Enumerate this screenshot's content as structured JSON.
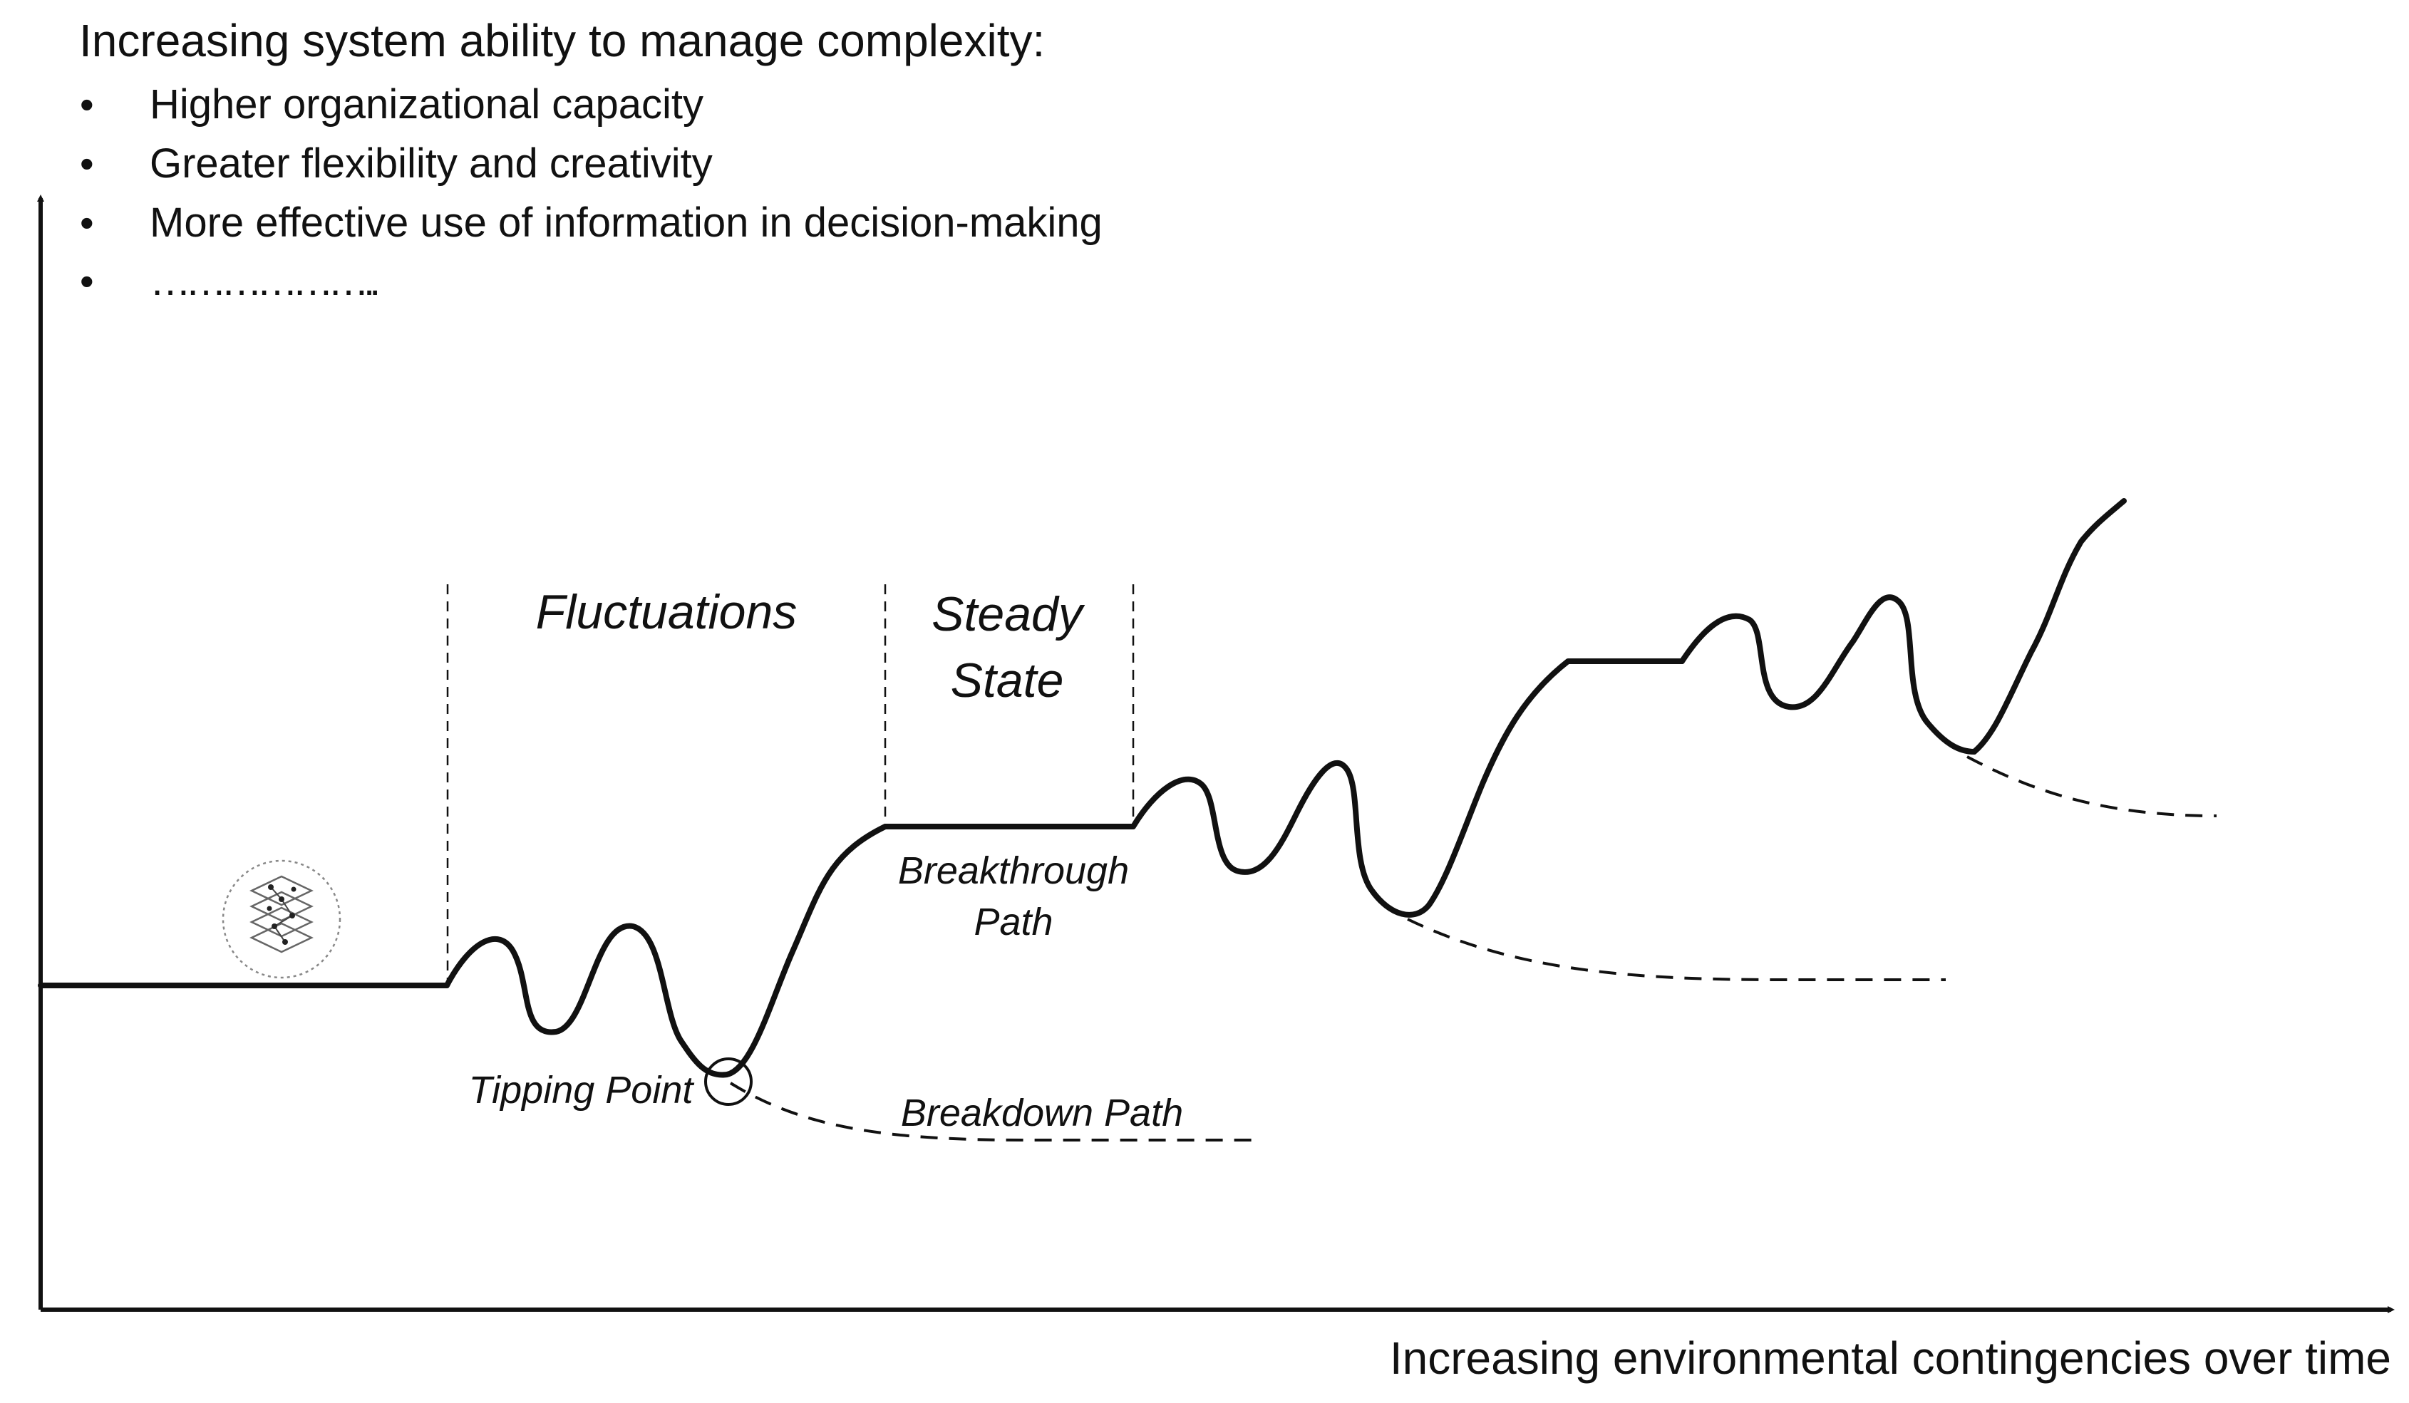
{
  "diagram": {
    "heading": "Increasing system ability to manage complexity:",
    "bullets": [
      "Higher organizational capacity",
      "Greater flexibility and creativity",
      "More effective use of information in decision-making",
      "……………….."
    ],
    "bullet_symbol": "•",
    "x_axis_label": "Increasing environmental contingencies over time",
    "phases": {
      "fluctuations": "Fluctuations",
      "steady_state_line1": "Steady",
      "steady_state_line2": "State"
    },
    "annotations": {
      "tipping_point": "Tipping Point",
      "breakthrough_line1": "Breakthrough",
      "breakthrough_line2": "Path",
      "breakdown_path": "Breakdown Path"
    },
    "icon": "layered-network-icon",
    "colors": {
      "ink": "#111111",
      "background": "#ffffff"
    }
  }
}
